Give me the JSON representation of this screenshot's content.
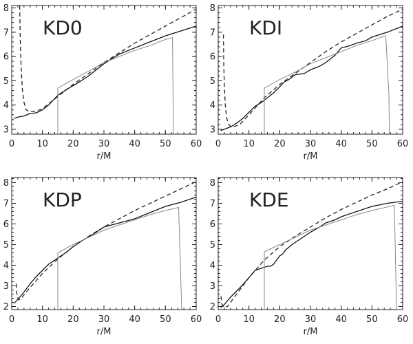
{
  "chart_data": [
    {
      "type": "line",
      "title": "KD0",
      "xlabel": "r/M",
      "ylabel": "",
      "xlim": [
        0,
        60
      ],
      "ylim": [
        2.8,
        8.1
      ],
      "xticks": [
        0,
        10,
        20,
        30,
        40,
        50,
        60
      ],
      "yticks": [
        3,
        4,
        5,
        6,
        7,
        8
      ],
      "series": [
        {
          "style": "dashed",
          "color": "#222222",
          "x": [
            2.6,
            2.8,
            3.1,
            3.5,
            4.0,
            4.7,
            6,
            8,
            10,
            15,
            20,
            25,
            30,
            35,
            40,
            45,
            50,
            55,
            60
          ],
          "y": [
            8.1,
            6.6,
            5.5,
            4.6,
            4.1,
            3.8,
            3.72,
            3.75,
            3.85,
            4.35,
            4.85,
            5.3,
            5.75,
            6.15,
            6.55,
            6.9,
            7.25,
            7.6,
            7.95
          ]
        },
        {
          "style": "solid",
          "color": "#111111",
          "x": [
            0.8,
            2,
            4,
            6,
            8,
            10,
            12,
            15,
            18,
            20,
            22,
            25,
            28,
            30,
            35,
            40,
            45,
            50,
            55,
            60
          ],
          "y": [
            3.45,
            3.5,
            3.55,
            3.65,
            3.68,
            3.8,
            4.0,
            4.4,
            4.65,
            4.8,
            4.95,
            5.2,
            5.5,
            5.7,
            6.1,
            6.35,
            6.6,
            6.85,
            7.05,
            7.25
          ]
        },
        {
          "style": "solid",
          "color": "#888888",
          "x": [
            15,
            15,
            20,
            25,
            30,
            35,
            40,
            45,
            50,
            52.3,
            52.6
          ],
          "y": [
            2.8,
            4.7,
            5.05,
            5.4,
            5.75,
            6.0,
            6.25,
            6.45,
            6.7,
            6.78,
            2.8
          ]
        }
      ]
    },
    {
      "type": "line",
      "title": "KDI",
      "xlabel": "r/M",
      "ylabel": "",
      "xlim": [
        0,
        60
      ],
      "ylim": [
        2.8,
        8.1
      ],
      "xticks": [
        0,
        10,
        20,
        30,
        40,
        50,
        60
      ],
      "yticks": [
        3,
        4,
        5,
        6,
        7,
        8
      ],
      "series": [
        {
          "style": "dashed",
          "color": "#222222",
          "x": [
            1.7,
            1.8,
            2.0,
            2.3,
            2.7,
            3.2,
            4,
            5,
            7,
            10,
            15,
            20,
            25,
            30,
            35,
            40,
            45,
            50,
            55,
            60
          ],
          "y": [
            6.9,
            5.8,
            4.8,
            4.0,
            3.5,
            3.25,
            3.12,
            3.1,
            3.2,
            3.6,
            4.3,
            4.85,
            5.3,
            5.75,
            6.2,
            6.6,
            6.95,
            7.3,
            7.65,
            7.95
          ]
        },
        {
          "style": "solid",
          "color": "#111111",
          "x": [
            0.8,
            2,
            4,
            6,
            8,
            10,
            12,
            14,
            16,
            18,
            20,
            21.5,
            23,
            25,
            28,
            30,
            33,
            35,
            38,
            40,
            43,
            45,
            48,
            50,
            55,
            60
          ],
          "y": [
            2.95,
            3.0,
            3.1,
            3.25,
            3.45,
            3.7,
            3.95,
            4.1,
            4.3,
            4.5,
            4.75,
            4.95,
            5.05,
            5.25,
            5.3,
            5.45,
            5.6,
            5.75,
            6.05,
            6.35,
            6.45,
            6.55,
            6.65,
            6.8,
            7.0,
            7.25
          ]
        },
        {
          "style": "solid",
          "color": "#888888",
          "x": [
            15,
            15,
            20,
            25,
            30,
            35,
            40,
            45,
            50,
            54.2,
            54.5,
            55.5,
            55.7
          ],
          "y": [
            2.8,
            4.7,
            5.05,
            5.35,
            5.7,
            5.95,
            6.2,
            6.45,
            6.65,
            6.85,
            6.85,
            4.5,
            2.8
          ]
        }
      ]
    },
    {
      "type": "line",
      "title": "KDP",
      "xlabel": "r/M",
      "ylabel": "",
      "xlim": [
        0,
        60
      ],
      "ylim": [
        1.85,
        8.25
      ],
      "xticks": [
        0,
        10,
        20,
        30,
        40,
        50,
        60
      ],
      "yticks": [
        2,
        3,
        4,
        5,
        6,
        7,
        8
      ],
      "series": [
        {
          "style": "dashed",
          "color": "#222222",
          "x": [
            1.5,
            1.6,
            1.9,
            2.3,
            3,
            5,
            10,
            15,
            20,
            25,
            30,
            35,
            40,
            45,
            50,
            55,
            60
          ],
          "y": [
            3.1,
            2.7,
            2.45,
            2.32,
            2.38,
            2.75,
            3.6,
            4.3,
            4.9,
            5.4,
            5.85,
            6.25,
            6.65,
            7.0,
            7.35,
            7.7,
            8.05
          ]
        },
        {
          "style": "solid",
          "color": "#111111",
          "x": [
            0.8,
            2,
            4,
            6,
            8,
            10,
            12,
            15,
            18,
            20,
            23,
            26,
            30,
            35,
            40,
            45,
            50,
            55,
            60
          ],
          "y": [
            2.15,
            2.35,
            2.7,
            3.1,
            3.45,
            3.75,
            4.05,
            4.35,
            4.65,
            4.9,
            5.2,
            5.45,
            5.85,
            6.05,
            6.25,
            6.55,
            6.85,
            7.05,
            7.3
          ]
        },
        {
          "style": "solid",
          "color": "#888888",
          "x": [
            15,
            15,
            20,
            25,
            30,
            35,
            40,
            45,
            50,
            54.3,
            55.3
          ],
          "y": [
            1.85,
            4.6,
            5.0,
            5.35,
            5.7,
            5.95,
            6.2,
            6.45,
            6.65,
            6.8,
            1.85
          ]
        }
      ]
    },
    {
      "type": "line",
      "title": "KDE",
      "xlabel": "r/M",
      "ylabel": "",
      "xlim": [
        0,
        60
      ],
      "ylim": [
        1.85,
        8.25
      ],
      "xticks": [
        0,
        10,
        20,
        30,
        40,
        50,
        60
      ],
      "yticks": [
        2,
        3,
        4,
        5,
        6,
        7,
        8
      ],
      "series": [
        {
          "style": "dashed",
          "color": "#222222",
          "x": [
            0.9,
            1.2,
            2,
            3,
            5,
            10,
            15,
            20,
            25,
            30,
            35,
            40,
            45,
            50,
            55,
            60
          ],
          "y": [
            2.5,
            2.1,
            1.95,
            2.0,
            2.4,
            3.4,
            4.25,
            4.9,
            5.4,
            5.85,
            6.3,
            6.7,
            7.05,
            7.4,
            7.7,
            8.05
          ]
        },
        {
          "style": "solid",
          "color": "#111111",
          "x": [
            0.8,
            2,
            4,
            6,
            8,
            10,
            12,
            14,
            16,
            17,
            18,
            19,
            20,
            21,
            22,
            24,
            26,
            28,
            30,
            33,
            35,
            38,
            40,
            45,
            50,
            55,
            60
          ],
          "y": [
            1.95,
            2.1,
            2.45,
            2.75,
            3.05,
            3.4,
            3.75,
            3.85,
            3.95,
            3.95,
            4.05,
            4.25,
            4.45,
            4.55,
            4.75,
            5.0,
            5.2,
            5.4,
            5.6,
            5.85,
            6.05,
            6.2,
            6.35,
            6.6,
            6.85,
            7.0,
            7.1
          ]
        },
        {
          "style": "solid",
          "color": "#888888",
          "x": [
            15,
            15,
            20,
            25,
            30,
            35,
            40,
            45,
            50,
            57.3,
            58
          ],
          "y": [
            1.85,
            4.65,
            5.0,
            5.35,
            5.7,
            5.95,
            6.2,
            6.45,
            6.65,
            6.9,
            1.85
          ]
        }
      ]
    }
  ]
}
